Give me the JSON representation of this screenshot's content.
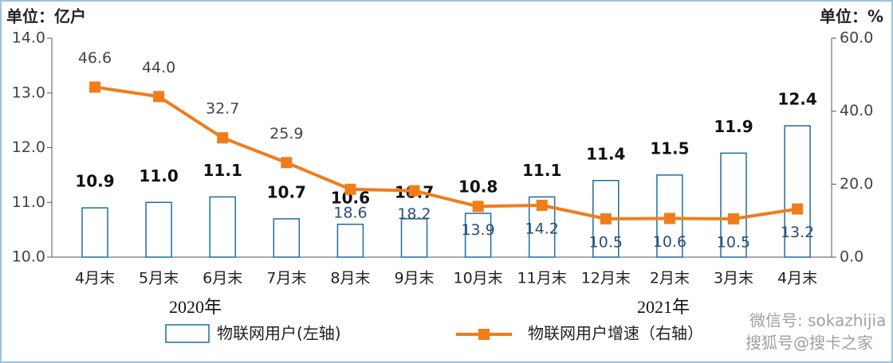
{
  "chart_data": {
    "type": "bar-line",
    "left_unit": "单位：亿户",
    "right_unit": "单位：%",
    "categories": [
      "4月末",
      "5月末",
      "6月末",
      "7月末",
      "8月末",
      "9月末",
      "10月末",
      "11月末",
      "12月末",
      "2月末",
      "3月末",
      "4月末"
    ],
    "year_labels": [
      "2020年",
      "2021年"
    ],
    "series": [
      {
        "name": "物联网用户(左轴)",
        "type": "bar",
        "color": "#1f6e9a",
        "values": [
          10.9,
          11.0,
          11.1,
          10.7,
          10.6,
          10.7,
          10.8,
          11.1,
          11.4,
          11.5,
          11.9,
          12.4
        ],
        "value_labels": [
          "10.9",
          "11.0",
          "11.1",
          "10.7",
          "10.6",
          "10.7",
          "10.8",
          "11.1",
          "11.4",
          "11.5",
          "11.9",
          "12.4"
        ]
      },
      {
        "name": "物联网用户增速（右轴）",
        "type": "line",
        "axis": "y2",
        "color": "#f07d1a",
        "values": [
          46.6,
          44.0,
          32.7,
          25.9,
          18.6,
          18.2,
          13.9,
          14.2,
          10.5,
          10.6,
          10.5,
          13.2
        ],
        "value_labels": [
          "46.6",
          "44.0",
          "32.7",
          "25.9",
          "18.6",
          "18.2",
          "13.9",
          "14.2",
          "10.5",
          "10.6",
          "10.5",
          "13.2"
        ]
      }
    ],
    "ylim": [
      10,
      14
    ],
    "yticks": [
      {
        "value": 10,
        "label": "10.0"
      },
      {
        "value": 11,
        "label": "11.0"
      },
      {
        "value": 12,
        "label": "12.0"
      },
      {
        "value": 13,
        "label": "13.0"
      },
      {
        "value": 14,
        "label": "14.0"
      }
    ],
    "y2lim": [
      0,
      60
    ],
    "y2ticks": [
      {
        "value": 0,
        "label": "0.0"
      },
      {
        "value": 20,
        "label": "20.0"
      },
      {
        "value": 40,
        "label": "40.0"
      },
      {
        "value": 60,
        "label": "60.0"
      }
    ],
    "watermarks": [
      "微信号: sokazhijia",
      "搜狐号@搜卡之家"
    ]
  }
}
